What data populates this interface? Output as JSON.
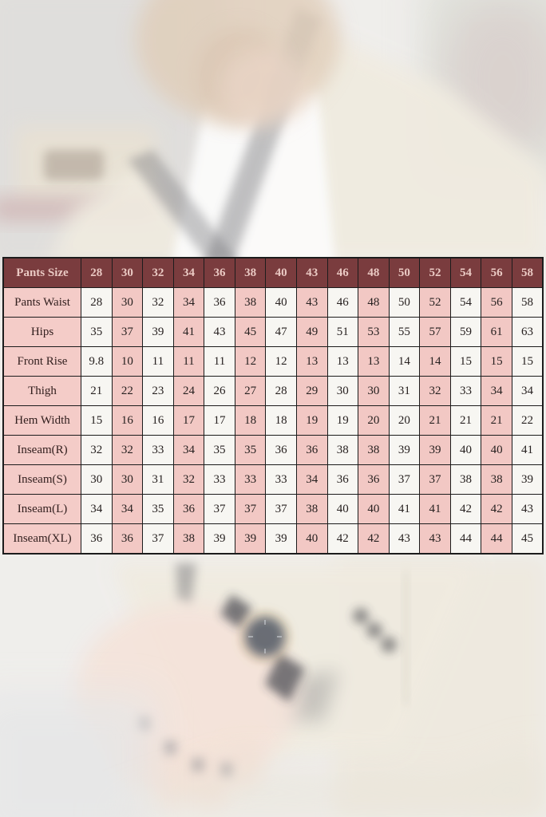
{
  "colors": {
    "header_bg": "#7a3c3e",
    "header_text": "#eac9c3",
    "label_bg": "#f4ccc8",
    "cell_pink": "#f2c8c4",
    "cell_white": "#f7f6f2",
    "grid_border": "#1c1c1c",
    "cell_text": "#272120",
    "label_text": "#33201f"
  },
  "chart_data": {
    "type": "table",
    "columns": [
      "Pants Size",
      "28",
      "30",
      "32",
      "34",
      "36",
      "38",
      "40",
      "43",
      "46",
      "48",
      "50",
      "52",
      "54",
      "56",
      "58"
    ],
    "rows": [
      {
        "label": "Pants Waist",
        "values": [
          "28",
          "30",
          "32",
          "34",
          "36",
          "38",
          "40",
          "43",
          "46",
          "48",
          "50",
          "52",
          "54",
          "56",
          "58"
        ]
      },
      {
        "label": "Hips",
        "values": [
          "35",
          "37",
          "39",
          "41",
          "43",
          "45",
          "47",
          "49",
          "51",
          "53",
          "55",
          "57",
          "59",
          "61",
          "63"
        ]
      },
      {
        "label": "Front Rise",
        "values": [
          "9.8",
          "10",
          "11",
          "11",
          "11",
          "12",
          "12",
          "13",
          "13",
          "13",
          "14",
          "14",
          "15",
          "15",
          "15"
        ]
      },
      {
        "label": "Thigh",
        "values": [
          "21",
          "22",
          "23",
          "24",
          "26",
          "27",
          "28",
          "29",
          "30",
          "30",
          "31",
          "32",
          "33",
          "34",
          "34"
        ]
      },
      {
        "label": "Hem Width",
        "values": [
          "15",
          "16",
          "16",
          "17",
          "17",
          "18",
          "18",
          "19",
          "19",
          "20",
          "20",
          "21",
          "21",
          "21",
          "22"
        ]
      },
      {
        "label": "Inseam(R)",
        "values": [
          "32",
          "32",
          "33",
          "34",
          "35",
          "35",
          "36",
          "36",
          "38",
          "38",
          "39",
          "39",
          "40",
          "40",
          "41"
        ]
      },
      {
        "label": "Inseam(S)",
        "values": [
          "30",
          "30",
          "31",
          "32",
          "33",
          "33",
          "33",
          "34",
          "36",
          "36",
          "37",
          "37",
          "38",
          "38",
          "39"
        ]
      },
      {
        "label": "Inseam(L)",
        "values": [
          "34",
          "34",
          "35",
          "36",
          "37",
          "37",
          "37",
          "38",
          "40",
          "40",
          "41",
          "41",
          "42",
          "42",
          "43"
        ]
      },
      {
        "label": "Inseam(XL)",
        "values": [
          "36",
          "36",
          "37",
          "38",
          "39",
          "39",
          "39",
          "40",
          "42",
          "42",
          "43",
          "43",
          "44",
          "44",
          "45"
        ]
      }
    ],
    "layout": {
      "grid": true,
      "striped_columns": true,
      "legend": "none"
    }
  }
}
